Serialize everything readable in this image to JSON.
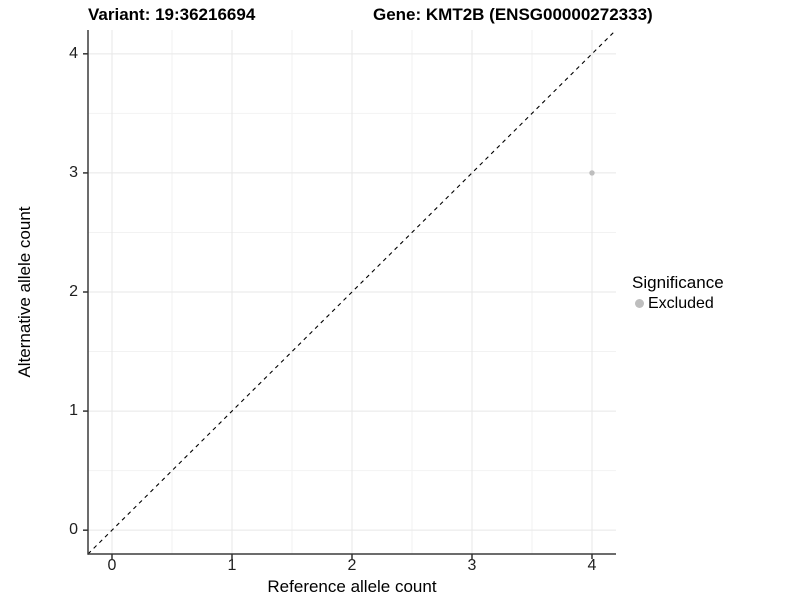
{
  "titles": {
    "variant": "Variant: 19:36216694",
    "gene": "Gene: KMT2B (ENSG00000272333)"
  },
  "chart_data": {
    "type": "scatter",
    "title": "Variant: 19:36216694 / Gene: KMT2B (ENSG00000272333)",
    "xlabel": "Reference allele count",
    "ylabel": "Alternative allele count",
    "xlim": [
      -0.2,
      4.2
    ],
    "ylim": [
      -0.2,
      4.2
    ],
    "x_ticks": [
      0,
      1,
      2,
      3,
      4
    ],
    "y_ticks": [
      0,
      1,
      2,
      3,
      4
    ],
    "minor_gridlines": [
      0.5,
      1.5,
      2.5,
      3.5
    ],
    "grid": true,
    "series": [
      {
        "name": "Excluded",
        "color": "#bebebe",
        "points": [
          {
            "x": 4,
            "y": 3
          }
        ],
        "point_radius": 2.7
      }
    ],
    "reference_line": {
      "type": "identity",
      "style": "dashed",
      "from": [
        -0.2,
        -0.2
      ],
      "to": [
        4.2,
        4.2
      ],
      "color": "#000000"
    },
    "legend": {
      "title": "Significance",
      "position": "right",
      "items": [
        {
          "label": "Excluded",
          "color": "#bebebe"
        }
      ]
    }
  },
  "colors": {
    "background": "#ffffff",
    "grid_major": "#e7e7e7",
    "grid_minor": "#f2f2f2",
    "axis_line": "#3c3c3c",
    "tick_mark": "#333333",
    "tick_label": "#1f1f1f",
    "point": "#bebebe"
  }
}
